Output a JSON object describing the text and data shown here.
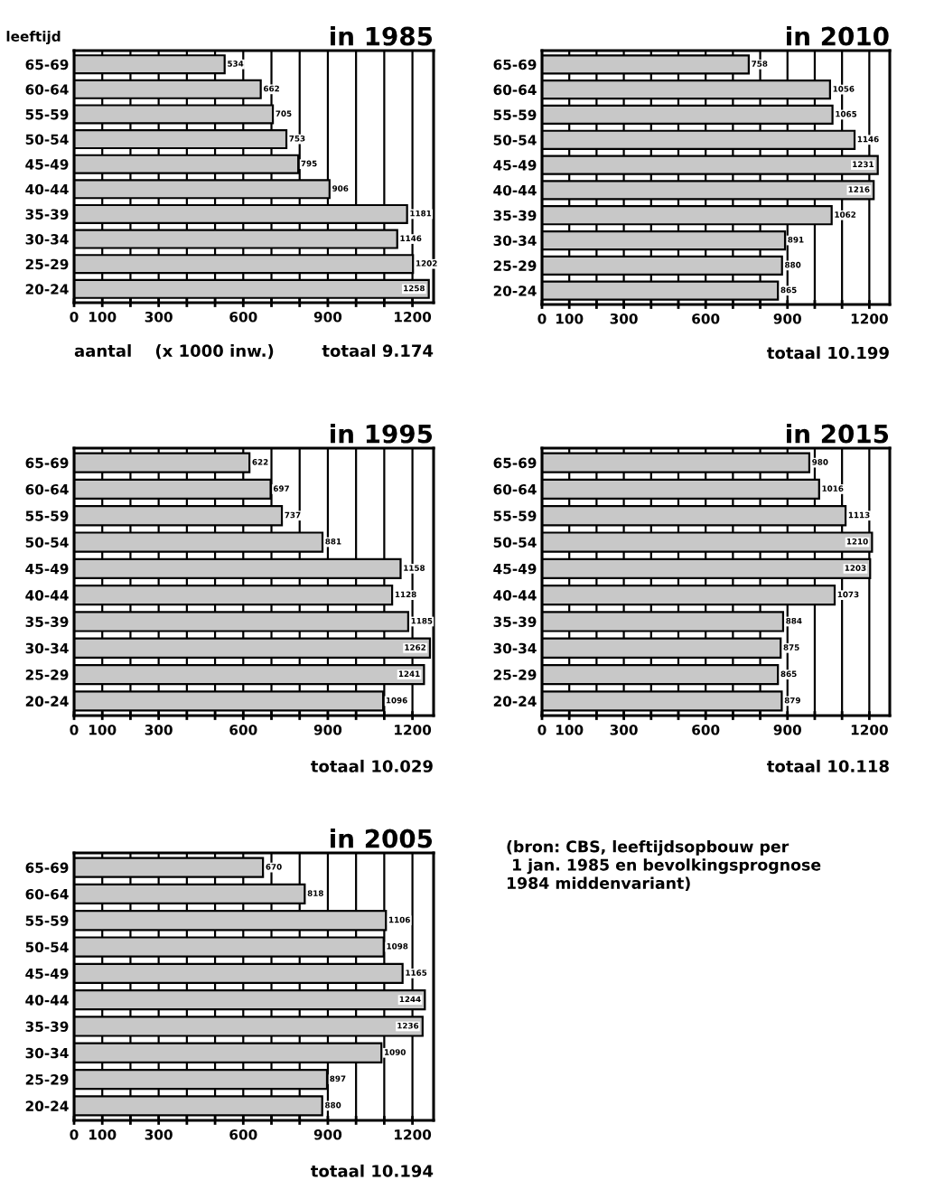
{
  "chart_data": [
    {
      "type": "bar",
      "orientation": "horizontal",
      "title": "in 1985",
      "ylabel": "leeftijd",
      "xlabel": "aantal    (x 1000 inw.)",
      "annotations": [
        "totaal 9.174"
      ],
      "categories": [
        "65-69",
        "60-64",
        "55-59",
        "50-54",
        "45-49",
        "40-44",
        "35-39",
        "30-34",
        "25-29",
        "20-24"
      ],
      "values": [
        534,
        662,
        705,
        753,
        795,
        906,
        1181,
        1146,
        1202,
        1258
      ],
      "color": "#c8c8c8",
      "data_labels": true,
      "grid": "x",
      "xlim": [
        0,
        1275
      ],
      "xticks": [
        0,
        100,
        {
          "value": 200,
          "label": null
        },
        300,
        {
          "value": 400,
          "label": null
        },
        {
          "value": 500,
          "label": null
        },
        600,
        {
          "value": 700,
          "label": null
        },
        {
          "value": 800,
          "label": null
        },
        900,
        {
          "value": 1000,
          "label": null
        },
        {
          "value": 1100,
          "label": null
        },
        1200
      ]
    },
    {
      "type": "bar",
      "orientation": "horizontal",
      "title": "in 2010",
      "annotations": [
        "totaal 10.199"
      ],
      "categories": [
        "65-69",
        "60-64",
        "55-59",
        "50-54",
        "45-49",
        "40-44",
        "35-39",
        "30-34",
        "25-29",
        "20-24"
      ],
      "values": [
        758,
        1056,
        1065,
        1146,
        1231,
        1216,
        1062,
        891,
        880,
        865
      ],
      "color": "#c8c8c8",
      "data_labels": true,
      "grid": "x",
      "xlim": [
        0,
        1275
      ],
      "xticks": [
        0,
        100,
        {
          "value": 200,
          "label": null
        },
        300,
        {
          "value": 400,
          "label": null
        },
        {
          "value": 500,
          "label": null
        },
        600,
        {
          "value": 700,
          "label": null
        },
        {
          "value": 800,
          "label": null
        },
        900,
        {
          "value": 1000,
          "label": null
        },
        {
          "value": 1100,
          "label": null
        },
        1200
      ]
    },
    {
      "type": "bar",
      "orientation": "horizontal",
      "title": "in 1995",
      "annotations": [
        "totaal 10.029"
      ],
      "categories": [
        "65-69",
        "60-64",
        "55-59",
        "50-54",
        "45-49",
        "40-44",
        "35-39",
        "30-34",
        "25-29",
        "20-24"
      ],
      "values": [
        622,
        697,
        737,
        881,
        1158,
        1128,
        1185,
        1262,
        1241,
        1096
      ],
      "color": "#c8c8c8",
      "data_labels": true,
      "grid": "x",
      "xlim": [
        0,
        1275
      ],
      "xticks": [
        0,
        100,
        {
          "value": 200,
          "label": null
        },
        300,
        {
          "value": 400,
          "label": null
        },
        {
          "value": 500,
          "label": null
        },
        600,
        {
          "value": 700,
          "label": null
        },
        {
          "value": 800,
          "label": null
        },
        900,
        {
          "value": 1000,
          "label": null
        },
        {
          "value": 1100,
          "label": null
        },
        1200
      ]
    },
    {
      "type": "bar",
      "orientation": "horizontal",
      "title": "in 2015",
      "annotations": [
        "totaal 10.118"
      ],
      "categories": [
        "65-69",
        "60-64",
        "55-59",
        "50-54",
        "45-49",
        "40-44",
        "35-39",
        "30-34",
        "25-29",
        "20-24"
      ],
      "values": [
        980,
        1016,
        1113,
        1210,
        1203,
        1073,
        884,
        875,
        865,
        879
      ],
      "color": "#c8c8c8",
      "data_labels": true,
      "grid": "x",
      "xlim": [
        0,
        1275
      ],
      "xticks": [
        0,
        100,
        {
          "value": 200,
          "label": null
        },
        300,
        {
          "value": 400,
          "label": null
        },
        {
          "value": 500,
          "label": null
        },
        600,
        {
          "value": 700,
          "label": null
        },
        {
          "value": 800,
          "label": null
        },
        900,
        {
          "value": 1000,
          "label": null
        },
        {
          "value": 1100,
          "label": null
        },
        1200
      ]
    },
    {
      "type": "bar",
      "orientation": "horizontal",
      "title": "in 2005",
      "annotations": [
        "totaal 10.194"
      ],
      "categories": [
        "65-69",
        "60-64",
        "55-59",
        "50-54",
        "45-49",
        "40-44",
        "35-39",
        "30-34",
        "25-29",
        "20-24"
      ],
      "values": [
        670,
        818,
        1106,
        1098,
        1165,
        1244,
        1236,
        1090,
        897,
        880
      ],
      "color": "#c8c8c8",
      "data_labels": true,
      "grid": "x",
      "xlim": [
        0,
        1275
      ],
      "xticks": [
        0,
        100,
        {
          "value": 200,
          "label": null
        },
        300,
        {
          "value": 400,
          "label": null
        },
        {
          "value": 500,
          "label": null
        },
        600,
        {
          "value": 700,
          "label": null
        },
        {
          "value": 800,
          "label": null
        },
        900,
        {
          "value": 1000,
          "label": null
        },
        {
          "value": 1100,
          "label": null
        },
        1200
      ]
    },
    {
      "type": "other",
      "annotations": [
        "(bron: CBS, leeftijdsopbouw per\n 1 jan. 1985 en bevolkingsprognose\n1984 middenvariant)"
      ]
    }
  ]
}
